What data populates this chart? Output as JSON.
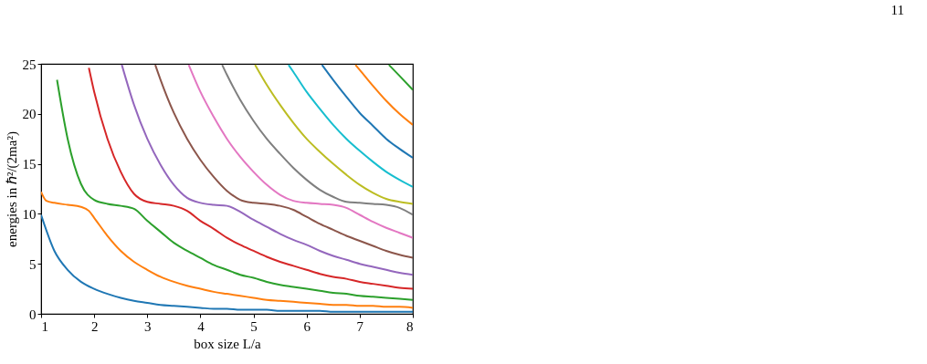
{
  "chart_data": {
    "type": "line",
    "xlabel": "box size L/a",
    "ylabel": "energies in ℏ²/(2ma²)",
    "xlim": [
      1,
      8
    ],
    "ylim": [
      0,
      25
    ],
    "xticks": [
      1,
      2,
      3,
      4,
      5,
      6,
      7,
      8
    ],
    "yticks": [
      0,
      5,
      10,
      15,
      20,
      25
    ],
    "grid": false,
    "legend": false,
    "line_style": "solid",
    "annotations": [
      "11"
    ],
    "series": [
      {
        "color": "#1f77b4",
        "x": [
          1,
          1.25,
          1.5,
          1.75,
          2,
          2.25,
          2.5,
          2.75,
          3,
          3.25,
          3.5,
          3.75,
          4,
          4.25,
          4.5,
          4.75,
          5,
          5.25,
          5.5,
          5.75,
          6,
          6.25,
          6.5,
          6.75,
          7,
          7.25,
          7.5,
          7.75,
          8
        ],
        "values": [
          9.9,
          6.3,
          4.4,
          3.2,
          2.5,
          2.0,
          1.6,
          1.3,
          1.1,
          0.9,
          0.8,
          0.7,
          0.6,
          0.5,
          0.5,
          0.4,
          0.4,
          0.4,
          0.3,
          0.3,
          0.3,
          0.3,
          0.2,
          0.2,
          0.2,
          0.2,
          0.2,
          0.2,
          0.2
        ]
      },
      {
        "color": "#ff7f0e",
        "x": [
          1,
          1.1,
          1.25,
          1.5,
          1.75,
          1.9,
          2,
          2.25,
          2.5,
          2.75,
          3,
          3.25,
          3.5,
          3.75,
          4,
          4.25,
          4.5,
          4.75,
          5,
          5.25,
          5.5,
          5.75,
          6,
          6.25,
          6.5,
          6.75,
          7,
          7.25,
          7.5,
          7.75,
          8
        ],
        "values": [
          12.2,
          11.3,
          11.1,
          10.9,
          10.7,
          10.3,
          9.6,
          7.8,
          6.3,
          5.2,
          4.4,
          3.7,
          3.2,
          2.8,
          2.5,
          2.2,
          2.0,
          1.8,
          1.6,
          1.4,
          1.3,
          1.2,
          1.1,
          1.0,
          0.9,
          0.9,
          0.8,
          0.8,
          0.7,
          0.7,
          0.6
        ]
      },
      {
        "color": "#2ca02c",
        "x": [
          1.3,
          1.5,
          1.75,
          2,
          2.25,
          2.5,
          2.75,
          3,
          3.25,
          3.5,
          3.75,
          4,
          4.25,
          4.5,
          4.75,
          5,
          5.25,
          5.5,
          5.75,
          6,
          6.25,
          6.5,
          6.75,
          7,
          7.25,
          7.5,
          7.75,
          8
        ],
        "values": [
          23.4,
          17.5,
          13.0,
          11.4,
          11.0,
          10.8,
          10.5,
          9.3,
          8.2,
          7.1,
          6.3,
          5.6,
          4.9,
          4.4,
          3.9,
          3.6,
          3.2,
          2.9,
          2.7,
          2.5,
          2.3,
          2.1,
          2.0,
          1.8,
          1.7,
          1.6,
          1.5,
          1.4
        ]
      },
      {
        "color": "#d62728",
        "x": [
          1.9,
          2,
          2.25,
          2.5,
          2.75,
          3,
          3.25,
          3.5,
          3.75,
          4,
          4.25,
          4.5,
          4.75,
          5,
          5.25,
          5.5,
          5.75,
          6,
          6.25,
          6.5,
          6.75,
          7,
          7.25,
          7.5,
          7.75,
          8
        ],
        "values": [
          24.6,
          22.2,
          17.5,
          14.2,
          12.0,
          11.2,
          11.0,
          10.8,
          10.3,
          9.3,
          8.5,
          7.6,
          6.9,
          6.3,
          5.7,
          5.2,
          4.8,
          4.4,
          4.0,
          3.7,
          3.5,
          3.2,
          3.0,
          2.8,
          2.6,
          2.5
        ]
      },
      {
        "color": "#9467bd",
        "x": [
          2.52,
          2.75,
          3,
          3.25,
          3.5,
          3.75,
          4,
          4.25,
          4.5,
          4.75,
          5,
          5.25,
          5.5,
          5.75,
          6,
          6.25,
          6.5,
          6.75,
          7,
          7.25,
          7.5,
          7.75,
          8
        ],
        "values": [
          24.9,
          20.9,
          17.5,
          14.9,
          12.9,
          11.6,
          11.1,
          10.9,
          10.8,
          10.2,
          9.4,
          8.7,
          8.0,
          7.4,
          6.9,
          6.3,
          5.8,
          5.4,
          5.0,
          4.7,
          4.4,
          4.1,
          3.9
        ]
      },
      {
        "color": "#8c564b",
        "x": [
          3.15,
          3.25,
          3.5,
          3.75,
          4,
          4.25,
          4.5,
          4.75,
          5,
          5.25,
          5.5,
          5.75,
          6,
          6.25,
          6.5,
          6.75,
          7,
          7.25,
          7.5,
          7.75,
          8
        ],
        "values": [
          24.9,
          23.4,
          20.1,
          17.5,
          15.4,
          13.7,
          12.3,
          11.4,
          11.1,
          11.0,
          10.8,
          10.4,
          9.7,
          9.0,
          8.4,
          7.8,
          7.3,
          6.8,
          6.3,
          5.9,
          5.6
        ]
      },
      {
        "color": "#e377c2",
        "x": [
          3.78,
          4,
          4.25,
          4.5,
          4.75,
          5,
          5.25,
          5.5,
          5.75,
          6,
          6.25,
          6.5,
          6.75,
          7,
          7.25,
          7.5,
          7.75,
          8
        ],
        "values": [
          24.9,
          22.2,
          19.7,
          17.5,
          15.7,
          14.2,
          12.9,
          11.9,
          11.3,
          11.1,
          11.0,
          10.9,
          10.6,
          9.9,
          9.2,
          8.6,
          8.1,
          7.6
        ]
      },
      {
        "color": "#7f7f7f",
        "x": [
          4.41,
          4.5,
          4.75,
          5,
          5.25,
          5.5,
          5.75,
          6,
          6.25,
          6.5,
          6.75,
          7,
          7.25,
          7.5,
          7.75,
          8
        ],
        "values": [
          24.9,
          23.9,
          21.4,
          19.3,
          17.5,
          16.0,
          14.6,
          13.4,
          12.4,
          11.7,
          11.2,
          11.1,
          11.0,
          10.9,
          10.6,
          9.9
        ]
      },
      {
        "color": "#bcbd22",
        "x": [
          5.03,
          5.25,
          5.5,
          5.75,
          6,
          6.25,
          6.5,
          6.75,
          7,
          7.25,
          7.5,
          7.75,
          8
        ],
        "values": [
          24.9,
          22.9,
          20.9,
          19.1,
          17.5,
          16.2,
          15.0,
          13.9,
          12.9,
          12.1,
          11.5,
          11.2,
          11.0
        ]
      },
      {
        "color": "#17becf",
        "x": [
          5.66,
          5.75,
          6,
          6.25,
          6.5,
          6.75,
          7,
          7.25,
          7.5,
          7.75,
          8
        ],
        "values": [
          24.9,
          24.2,
          22.2,
          20.5,
          18.9,
          17.5,
          16.3,
          15.2,
          14.2,
          13.4,
          12.7
        ]
      },
      {
        "color": "#1f77b4",
        "x": [
          6.29,
          6.5,
          6.75,
          7,
          7.25,
          7.5,
          7.75,
          8
        ],
        "values": [
          24.9,
          23.4,
          21.7,
          20.1,
          18.8,
          17.5,
          16.5,
          15.6
        ]
      },
      {
        "color": "#ff7f0e",
        "x": [
          6.92,
          7,
          7.25,
          7.5,
          7.75,
          8
        ],
        "values": [
          24.9,
          24.4,
          22.8,
          21.3,
          20.0,
          18.9
        ]
      },
      {
        "color": "#2ca02c",
        "x": [
          7.55,
          7.75,
          8
        ],
        "values": [
          24.9,
          23.8,
          22.4
        ]
      }
    ]
  }
}
